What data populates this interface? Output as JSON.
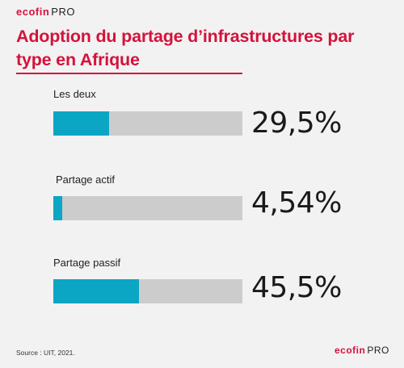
{
  "header": {
    "logo_brand": "ecofin",
    "logo_suffix": "PRO"
  },
  "title": "Adoption du partage d’infrastructures par type en Afrique",
  "source": "Source : UIT, 2021.",
  "footer": {
    "logo_brand": "ecofin",
    "logo_suffix": "PRO"
  },
  "colors": {
    "accent": "#d4123c",
    "bar_fill": "#0aa6c4",
    "bar_track": "#cccccc",
    "background": "#f2f2f2"
  },
  "chart_data": {
    "type": "bar",
    "orientation": "horizontal",
    "title": "Adoption du partage d’infrastructures par type en Afrique",
    "categories": [
      "Les deux",
      "Partage actif",
      "Partage passif"
    ],
    "values": [
      29.5,
      4.54,
      45.5
    ],
    "value_labels": [
      "29,5%",
      "4,54%",
      "45,5%"
    ],
    "unit": "%",
    "xlim": [
      0,
      100
    ],
    "grid": false,
    "legend": "none"
  }
}
